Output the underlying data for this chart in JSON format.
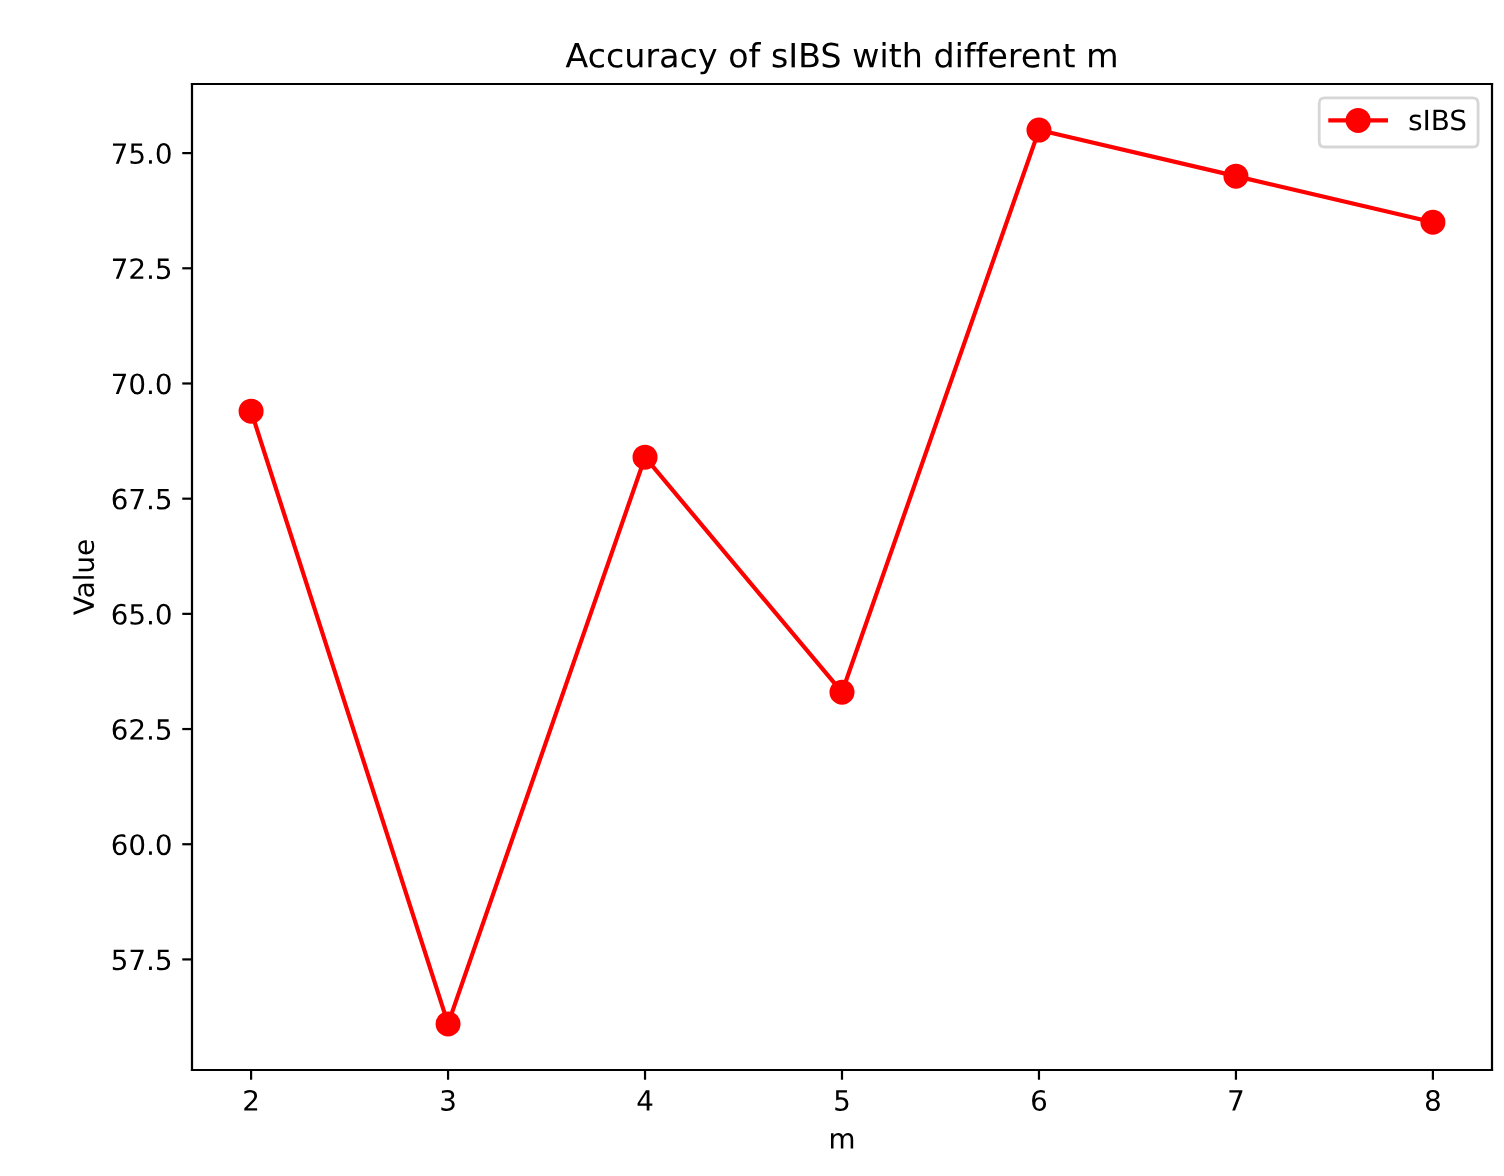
{
  "chart_data": {
    "type": "line",
    "title": "Accuracy of sIBS with different m",
    "xlabel": "m",
    "ylabel": "Value",
    "x": [
      2,
      3,
      4,
      5,
      6,
      7,
      8
    ],
    "series": [
      {
        "name": "sIBS",
        "color": "#ff0000",
        "values": [
          69.4,
          56.1,
          68.4,
          63.3,
          75.5,
          74.5,
          73.5
        ]
      }
    ],
    "xlim": [
      1.7,
      8.3
    ],
    "xticks": [
      2,
      3,
      4,
      5,
      6,
      7,
      8
    ],
    "ylim": [
      55.1,
      76.5
    ],
    "yticks": [
      {
        "value": 57.5,
        "label": "57.5"
      },
      {
        "value": 60,
        "label": "60.0"
      },
      {
        "value": 62.5,
        "label": "62.5"
      },
      {
        "value": 65,
        "label": "65.0"
      },
      {
        "value": 67.5,
        "label": "67.5"
      },
      {
        "value": 70,
        "label": "70.0"
      },
      {
        "value": 72.5,
        "label": "72.5"
      },
      {
        "value": 75,
        "label": "75.0"
      }
    ],
    "marker": "circle",
    "line_style": "solid",
    "grid": false,
    "legend": "top right"
  }
}
